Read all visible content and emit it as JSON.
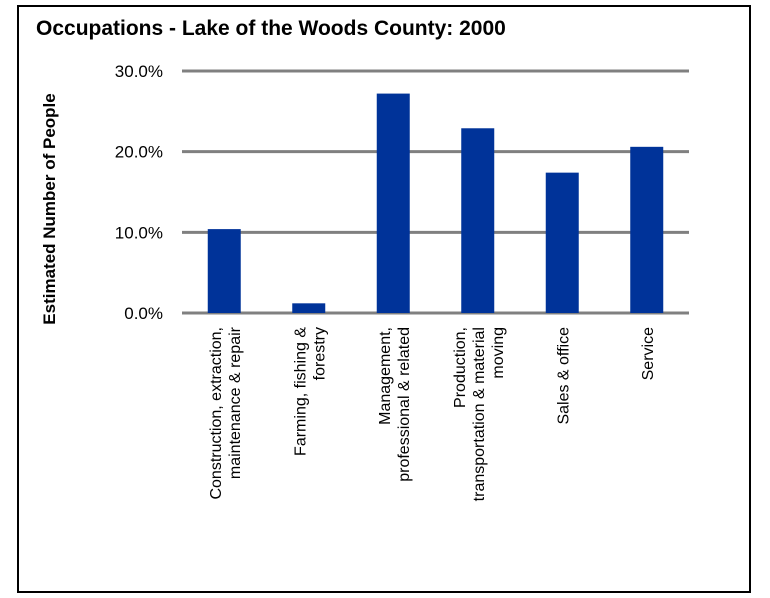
{
  "chart_data": {
    "type": "bar",
    "title": "Occupations - Lake of the Woods County: 2000",
    "ylabel": "Estimated Number of People",
    "xlabel": "",
    "categories": [
      [
        "Construction, extraction,",
        "maintenance & repair"
      ],
      [
        "Farming, fishing &",
        "forestry"
      ],
      [
        "Management,",
        "professional & related"
      ],
      [
        "Production,",
        "transportation & material",
        "moving"
      ],
      [
        "Sales & office"
      ],
      [
        "Service"
      ]
    ],
    "values": [
      10.4,
      1.2,
      27.2,
      22.9,
      17.4,
      20.6
    ],
    "ylim": [
      0,
      30
    ],
    "yticks": [
      0,
      10,
      20,
      30
    ],
    "ytick_labels": [
      "0.0%",
      "10.0%",
      "20.0%",
      "30.0%"
    ],
    "grid": true,
    "legend": "none",
    "bar_color": "#003399",
    "grid_color": "#808080"
  }
}
